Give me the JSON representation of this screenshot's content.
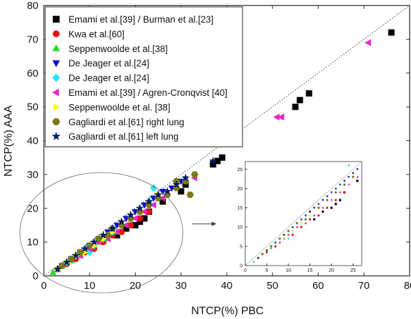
{
  "chart_data": {
    "type": "scatter",
    "xlabel": "NTCP(%) PBC",
    "ylabel": "NTCP(%) AAA",
    "xlim": [
      0,
      80
    ],
    "ylim": [
      0,
      80
    ],
    "xticks": [
      "0",
      "10",
      "20",
      "30",
      "40",
      "50",
      "60",
      "70",
      "80"
    ],
    "yticks": [
      "0",
      "10",
      "20",
      "30",
      "40",
      "50",
      "60",
      "70",
      "80"
    ],
    "identity_line": true,
    "legend_position": "top-left",
    "series": [
      {
        "name": "Emami et al.[39] / Burman et al.[23]",
        "marker": "square",
        "color": "#000000",
        "points": [
          [
            38,
            34
          ],
          [
            39,
            35
          ],
          [
            37,
            33
          ],
          [
            31,
            27
          ],
          [
            30,
            25
          ],
          [
            26,
            22
          ],
          [
            23,
            19
          ],
          [
            22,
            17
          ],
          [
            21,
            16
          ],
          [
            55,
            50
          ],
          [
            56,
            52
          ],
          [
            58,
            54
          ],
          [
            76,
            72
          ],
          [
            20,
            15
          ],
          [
            18,
            14
          ],
          [
            16,
            12
          ]
        ]
      },
      {
        "name": "Kwa et al.[60]",
        "marker": "circle",
        "color": "#e81010",
        "points": [
          [
            3,
            2
          ],
          [
            5,
            3.5
          ],
          [
            7,
            5
          ],
          [
            9,
            7
          ],
          [
            11,
            8
          ],
          [
            13,
            10
          ],
          [
            15,
            12
          ],
          [
            17,
            13
          ],
          [
            19,
            15
          ],
          [
            21,
            17
          ],
          [
            23,
            19
          ]
        ]
      },
      {
        "name": "Seppenwoolde et al.[38]",
        "marker": "triangle-up",
        "color": "#22dd22",
        "points": [
          [
            2,
            1
          ],
          [
            3,
            2
          ],
          [
            4,
            3
          ],
          [
            6,
            4.5
          ],
          [
            8,
            6
          ],
          [
            10,
            8
          ],
          [
            12,
            10
          ],
          [
            14,
            11
          ],
          [
            16,
            13
          ]
        ]
      },
      {
        "name": "De Jeager et al.[24]",
        "marker": "triangle-down",
        "color": "#1010cc",
        "points": [
          [
            4,
            3
          ],
          [
            6,
            5
          ],
          [
            8,
            7
          ],
          [
            10,
            9
          ],
          [
            12,
            11
          ],
          [
            14,
            13
          ],
          [
            16,
            15
          ],
          [
            18,
            17
          ],
          [
            20,
            19
          ],
          [
            22,
            21
          ],
          [
            24,
            23
          ],
          [
            26,
            25
          ],
          [
            28,
            26
          ],
          [
            30,
            28
          ]
        ]
      },
      {
        "name": "De Jeager et al.[24]",
        "marker": "diamond",
        "color": "#22e5f0",
        "points": [
          [
            5,
            4
          ],
          [
            7,
            6
          ],
          [
            9,
            8
          ],
          [
            11,
            9
          ],
          [
            13,
            11
          ],
          [
            15,
            13
          ],
          [
            17,
            15
          ],
          [
            19,
            17
          ],
          [
            21,
            19
          ],
          [
            23,
            22
          ],
          [
            25,
            24
          ],
          [
            24,
            26
          ],
          [
            14,
            12
          ],
          [
            10,
            7
          ]
        ]
      },
      {
        "name": "Emami et al.[39] / Agren-Cronqvist [40]",
        "marker": "triangle-left",
        "color": "#ee22cc",
        "points": [
          [
            6,
            5
          ],
          [
            8,
            6
          ],
          [
            10,
            8
          ],
          [
            12,
            10
          ],
          [
            14,
            11
          ],
          [
            16,
            13
          ],
          [
            18,
            15
          ],
          [
            20,
            17
          ],
          [
            22,
            19
          ],
          [
            24,
            21
          ],
          [
            26,
            23
          ],
          [
            33,
            29
          ],
          [
            51,
            47
          ],
          [
            52,
            47
          ],
          [
            71,
            69
          ]
        ]
      },
      {
        "name": "Seppenwoolde et al. [38]",
        "marker": "triangle-right",
        "color": "#ffff22",
        "points": [
          [
            3,
            2
          ],
          [
            5,
            4
          ],
          [
            7,
            6
          ],
          [
            9,
            7
          ],
          [
            11,
            9
          ],
          [
            13,
            11
          ],
          [
            15,
            13
          ],
          [
            17,
            15
          ],
          [
            19,
            17
          ],
          [
            21,
            19
          ],
          [
            23,
            21
          ],
          [
            25,
            24
          ]
        ]
      },
      {
        "name": "Gagliardi et al.[61] right lung",
        "marker": "hexagon",
        "color": "#7a7a1a",
        "points": [
          [
            4,
            3
          ],
          [
            6,
            5
          ],
          [
            8,
            7
          ],
          [
            10,
            9
          ],
          [
            12,
            11
          ],
          [
            14,
            12
          ],
          [
            15,
            14
          ],
          [
            17,
            15
          ],
          [
            19,
            17
          ],
          [
            21,
            19
          ],
          [
            23,
            21
          ],
          [
            25,
            23
          ],
          [
            27,
            24
          ],
          [
            29,
            26
          ],
          [
            31,
            28
          ],
          [
            33,
            30
          ],
          [
            29,
            28
          ],
          [
            32,
            24
          ]
        ]
      },
      {
        "name": "Gagliardi et al.[61] left lung",
        "marker": "star",
        "color": "#0a1a66",
        "points": [
          [
            3,
            2
          ],
          [
            5,
            4
          ],
          [
            7,
            6
          ],
          [
            9,
            8
          ],
          [
            11,
            10
          ],
          [
            13,
            12
          ],
          [
            15,
            14
          ],
          [
            17,
            16
          ],
          [
            19,
            18
          ],
          [
            21,
            20
          ],
          [
            23,
            22
          ],
          [
            25,
            24
          ],
          [
            27,
            25
          ],
          [
            29,
            27
          ],
          [
            31,
            29
          ],
          [
            37,
            34
          ]
        ]
      }
    ],
    "inset": {
      "xlim": [
        0,
        27
      ],
      "ylim": [
        0,
        27
      ],
      "xticks": [
        "0",
        "5",
        "10",
        "15",
        "20",
        "25"
      ],
      "yticks": [
        "0",
        "5",
        "10",
        "15",
        "20",
        "25"
      ],
      "identity_line": true
    },
    "annotation": "ellipse around 0–30% region with arrow pointing to inset"
  }
}
